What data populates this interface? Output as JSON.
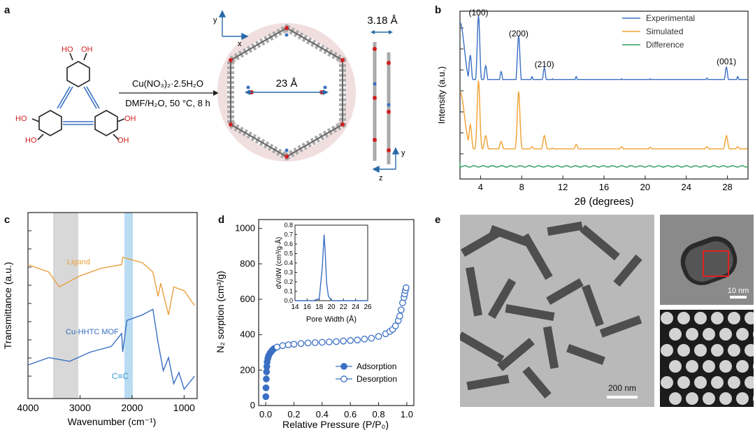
{
  "panels": {
    "a": {
      "letter": "a",
      "reagent": "Cu(NO₃)₂·2.5H₂O",
      "conditions": "DMF/H₂O, 50 °C, 8 h",
      "oh": "HO",
      "oh_r": "OH",
      "pore_size": "23 Å",
      "layer_spacing": "3.18 Å",
      "axis_x": "x",
      "axis_y": "y",
      "axis_y2": "y",
      "axis_z": "z"
    },
    "b": {
      "letter": "b",
      "ylabel": "Intensity (a.u.)",
      "xlabel": "2θ (degrees)",
      "peaks": [
        "(100)",
        "(200)",
        "(210)",
        "(001)"
      ],
      "legend": [
        "Experimental",
        "Simulated",
        "Difference"
      ]
    },
    "c": {
      "letter": "c",
      "ylabel": "Transmittance (a.u.)",
      "xlabel": "Wavenumber (cm⁻¹)",
      "ligand_label": "Ligand",
      "mof_label": "Cu-HHTC MOF",
      "cc_label": "C≡C"
    },
    "d": {
      "letter": "d",
      "ylabel": "N₂ sorption (cm³/g)",
      "xlabel": "Relative Pressure (P/P₀)",
      "inset_ylabel": "dV/dW (cm³/g·Å)",
      "inset_xlabel": "Pore Width (Å)",
      "legend": [
        "Adsorption",
        "Desorption"
      ]
    },
    "e": {
      "letter": "e",
      "scale_main": "200 nm",
      "scale_inset": "10 nm"
    }
  },
  "colors": {
    "experimental": "#3a6fc4",
    "simulated": "#f0a030",
    "difference": "#2a9d5c",
    "ligand": "#e8a040",
    "mof": "#3a6fc4",
    "oxygen": "#d02020",
    "alkyne": "#3a6fc4"
  },
  "chart_data": [
    {
      "panel": "b",
      "type": "line",
      "xlabel": "2θ (degrees)",
      "ylabel": "Intensity (a.u.)",
      "xlim": [
        2,
        30
      ],
      "xticks": [
        "4",
        "8",
        "12",
        "16",
        "20",
        "24",
        "28"
      ],
      "series": [
        {
          "name": "Experimental",
          "x": [
            2,
            3,
            3.8,
            4.5,
            6,
            7.7,
            9,
            10.2,
            11,
            13.3,
            14,
            17.7,
            20.5,
            26,
            27.9,
            29,
            30
          ],
          "y": [
            0.9,
            0.45,
            1.0,
            0.3,
            0.22,
            0.72,
            0.15,
            0.27,
            0.12,
            0.15,
            0.11,
            0.12,
            0.12,
            0.13,
            0.28,
            0.15,
            0.12
          ]
        },
        {
          "name": "Simulated",
          "x": [
            2,
            3,
            3.8,
            4.5,
            6,
            7.7,
            9,
            10.2,
            11,
            13.3,
            14,
            17.7,
            20.5,
            26,
            27.9,
            29,
            30
          ],
          "y": [
            0.8,
            0.35,
            0.95,
            0.2,
            0.12,
            0.8,
            0.05,
            0.2,
            0.03,
            0.08,
            0.02,
            0.05,
            0.04,
            0.05,
            0.2,
            0.05,
            0.03
          ]
        },
        {
          "name": "Difference",
          "x": [
            2,
            30
          ],
          "y": [
            0,
            0
          ]
        }
      ],
      "annotations": [
        "(100)",
        "(200)",
        "(210)",
        "(001)"
      ]
    },
    {
      "panel": "c",
      "type": "line",
      "xlabel": "Wavenumber (cm⁻¹)",
      "ylabel": "Transmittance (a.u.)",
      "xlim": [
        4000,
        750
      ],
      "xticks": [
        "4000",
        "3000",
        "2000",
        "1000"
      ],
      "series": [
        {
          "name": "Ligand",
          "x": [
            4000,
            3600,
            3400,
            3000,
            2600,
            2200,
            2180,
            1800,
            1600,
            1500,
            1450,
            1300,
            1200,
            1000,
            800
          ],
          "y": [
            0.72,
            0.68,
            0.6,
            0.66,
            0.7,
            0.72,
            0.76,
            0.73,
            0.68,
            0.55,
            0.62,
            0.45,
            0.6,
            0.58,
            0.5
          ]
        },
        {
          "name": "Cu-HHTC MOF",
          "x": [
            4000,
            3600,
            3200,
            2800,
            2400,
            2200,
            2180,
            2100,
            1800,
            1600,
            1500,
            1400,
            1300,
            1200,
            1100,
            1000,
            800
          ],
          "y": [
            0.18,
            0.22,
            0.2,
            0.25,
            0.28,
            0.35,
            0.25,
            0.42,
            0.45,
            0.48,
            0.3,
            0.15,
            0.22,
            0.08,
            0.14,
            0.05,
            0.12
          ]
        }
      ]
    },
    {
      "panel": "d",
      "type": "scatter",
      "xlabel": "Relative Pressure (P/P₀)",
      "ylabel": "N₂ sorption (cm³/g)",
      "xlim": [
        -0.05,
        1.05
      ],
      "ylim": [
        0,
        1050
      ],
      "xticks": [
        "0.0",
        "0.2",
        "0.4",
        "0.6",
        "0.8",
        "1.0"
      ],
      "yticks": [
        "0",
        "200",
        "400",
        "600",
        "800",
        "1000"
      ],
      "series": [
        {
          "name": "Adsorption",
          "x": [
            0.001,
            0.002,
            0.004,
            0.006,
            0.008,
            0.01,
            0.015,
            0.02,
            0.03,
            0.04,
            0.05,
            0.06
          ],
          "y": [
            50,
            100,
            150,
            190,
            220,
            245,
            265,
            280,
            295,
            305,
            315,
            322
          ]
        },
        {
          "name": "Desorption",
          "x": [
            0.08,
            0.12,
            0.16,
            0.2,
            0.25,
            0.3,
            0.35,
            0.4,
            0.45,
            0.5,
            0.55,
            0.6,
            0.65,
            0.7,
            0.75,
            0.8,
            0.85,
            0.88,
            0.9,
            0.92,
            0.94,
            0.95,
            0.96,
            0.97,
            0.98,
            0.985,
            0.99,
            0.995
          ],
          "y": [
            330,
            338,
            343,
            346,
            350,
            353,
            355,
            357,
            359,
            361,
            364,
            367,
            370,
            375,
            380,
            390,
            405,
            418,
            430,
            450,
            480,
            505,
            540,
            580,
            610,
            630,
            650,
            665
          ]
        }
      ]
    },
    {
      "panel": "d-inset",
      "type": "line",
      "xlabel": "Pore Width (Å)",
      "ylabel": "dV/dW (cm³/g·Å)",
      "xlim": [
        14,
        26
      ],
      "ylim": [
        0,
        0.8
      ],
      "xticks": [
        "14",
        "16",
        "18",
        "20",
        "22",
        "24",
        "26"
      ],
      "yticks": [
        "0.0",
        "0.1",
        "0.2",
        "0.3",
        "0.4",
        "0.5",
        "0.6",
        "0.7",
        "0.8"
      ],
      "series": [
        {
          "name": "",
          "x": [
            14,
            17,
            18,
            18.5,
            18.8,
            19,
            19.2,
            19.5,
            20,
            21,
            26
          ],
          "y": [
            0,
            0,
            0.02,
            0.35,
            0.7,
            0.5,
            0.2,
            0.05,
            0,
            0,
            0
          ]
        }
      ]
    }
  ]
}
